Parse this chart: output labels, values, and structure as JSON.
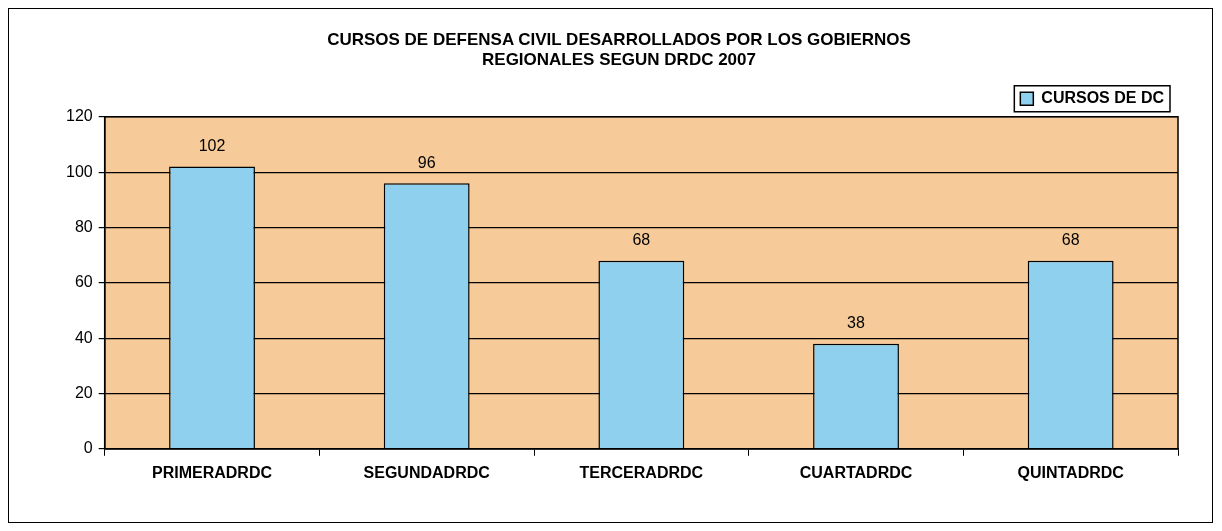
{
  "chart_data": {
    "type": "bar",
    "title": "CURSOS DE DEFENSA CIVIL DESARROLLADOS POR LOS GOBIERNOS\nREGIONALES SEGUN DRDC 2007",
    "categories": [
      "PRIMERADRDC",
      "SEGUNDADRDC",
      "TERCERADRDC",
      "CUARTADRDC",
      "QUINTADRDC"
    ],
    "series": [
      {
        "name": "CURSOS DE DC",
        "color": "#8fd0ee",
        "values": [
          102,
          96,
          68,
          38,
          68
        ]
      }
    ],
    "ylim": [
      0,
      120
    ],
    "yticks": [
      0,
      20,
      40,
      60,
      80,
      100,
      120
    ],
    "grid": "y",
    "legend": "top right",
    "data_labels": true
  }
}
